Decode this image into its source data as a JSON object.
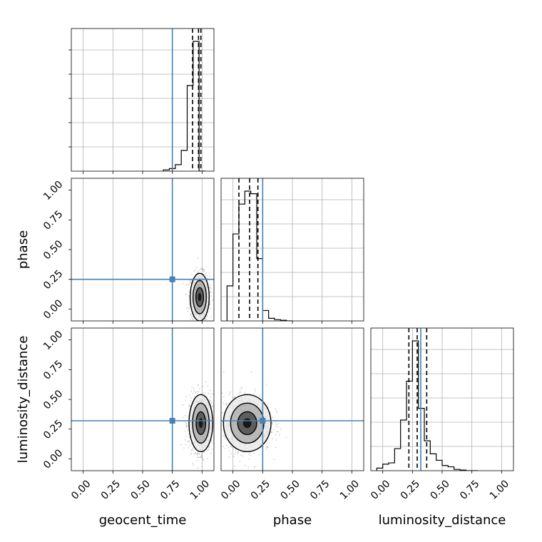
{
  "chart_data": {
    "type": "corner",
    "parameters": [
      "geocent_time",
      "phase",
      "luminosity_distance"
    ],
    "axis_range": [
      -0.1,
      1.1
    ],
    "ticks": [
      0.0,
      0.25,
      0.5,
      0.75,
      1.0
    ],
    "tick_labels": [
      "0.00",
      "0.25",
      "0.50",
      "0.75",
      "1.00"
    ],
    "truths": {
      "geocent_time": 0.75,
      "phase": 0.25,
      "luminosity_distance": 0.32
    },
    "truth_color": "#4682b4",
    "grid": true,
    "histograms": {
      "geocent_time": {
        "bin_edges": [
          0.675,
          0.725,
          0.775,
          0.825,
          0.875,
          0.925,
          0.975,
          1.025
        ],
        "density": [
          0.01,
          0.02,
          0.05,
          0.16,
          0.66,
          1.0,
          0.0
        ],
        "quantiles": [
          0.92,
          0.97,
          0.99
        ]
      },
      "phase": {
        "bin_edges": [
          -0.05,
          0.0,
          0.05,
          0.1,
          0.15,
          0.2,
          0.25,
          0.3,
          0.35,
          0.4,
          0.45,
          0.5
        ],
        "density": [
          0.27,
          0.67,
          0.9,
          1.0,
          0.98,
          0.48,
          0.08,
          0.02,
          0.01,
          0.005,
          0.0
        ],
        "quantiles": [
          0.05,
          0.14,
          0.21
        ]
      },
      "luminosity_distance": {
        "bin_edges": [
          -0.05,
          0.0,
          0.05,
          0.1,
          0.15,
          0.2,
          0.25,
          0.3,
          0.35,
          0.4,
          0.45,
          0.5,
          0.55,
          0.6,
          0.65,
          0.7,
          0.75,
          0.8
        ],
        "density": [
          0.02,
          0.05,
          0.06,
          0.17,
          0.39,
          0.69,
          1.0,
          0.48,
          0.23,
          0.13,
          0.08,
          0.04,
          0.03,
          0.01,
          0.005,
          0.0,
          0.0
        ],
        "quantiles": [
          0.22,
          0.29,
          0.37
        ]
      }
    },
    "contours": {
      "phase_vs_geocent_time": {
        "center": [
          0.98,
          0.1
        ],
        "spread": [
          0.04,
          0.1
        ]
      },
      "luminosity_distance_vs_geocent_time": {
        "center": [
          0.99,
          0.3
        ],
        "spread": [
          0.05,
          0.12
        ]
      },
      "luminosity_distance_vs_phase": {
        "center": [
          0.12,
          0.3
        ],
        "spread": [
          0.1,
          0.12
        ]
      }
    }
  }
}
